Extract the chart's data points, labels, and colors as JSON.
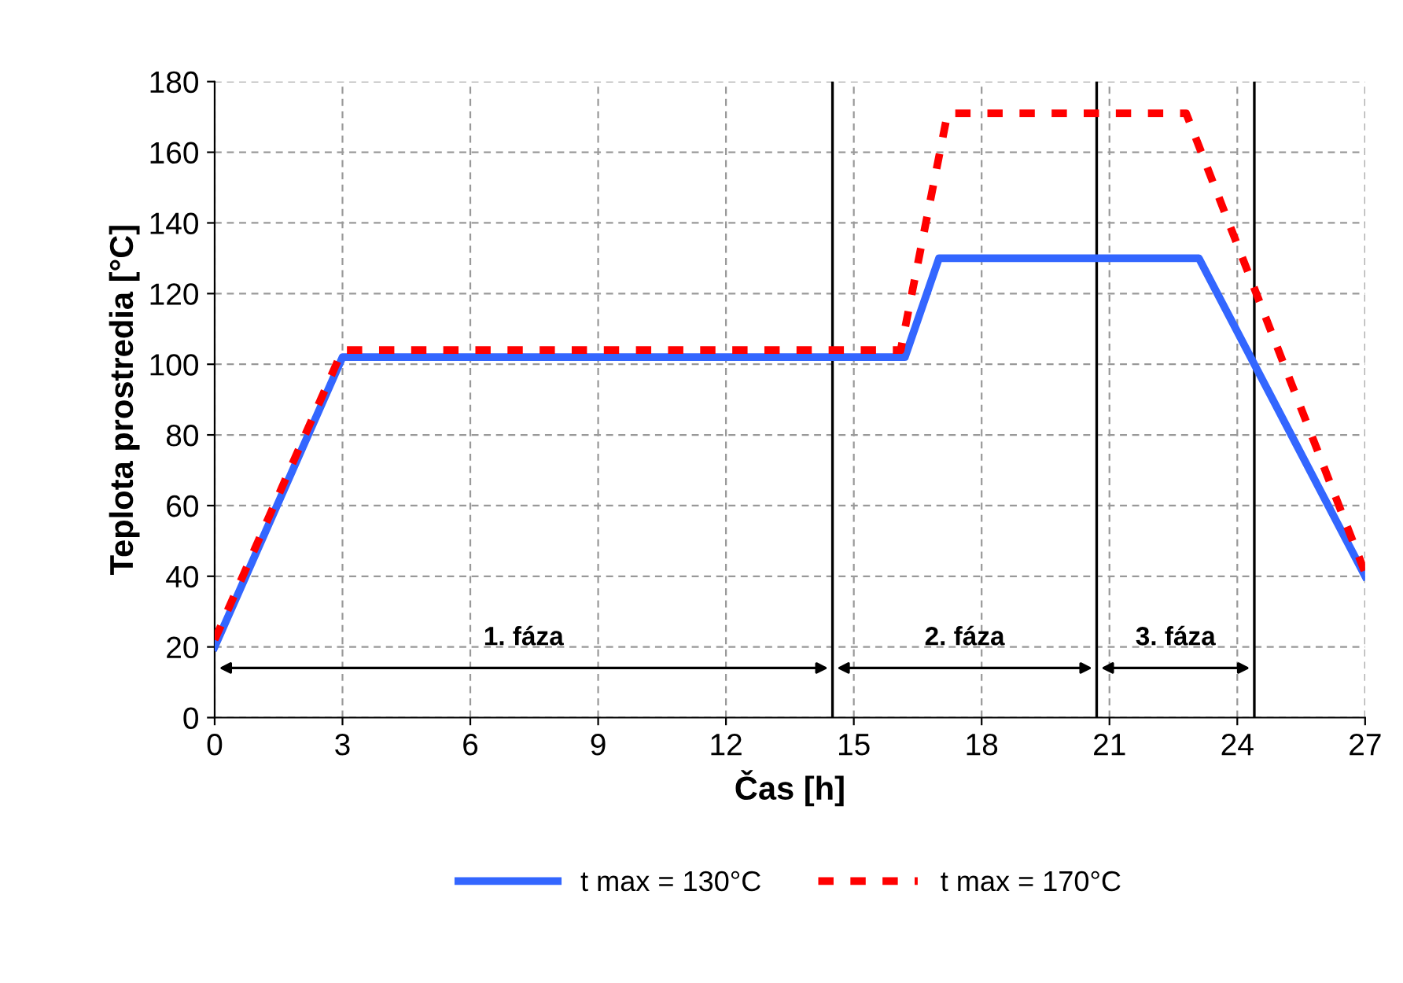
{
  "chart_data": {
    "type": "line",
    "xlabel": "Čas [h]",
    "ylabel": "Teplota prostredia [°C]",
    "xlim": [
      0,
      27
    ],
    "xticks": [
      0,
      3,
      6,
      9,
      12,
      15,
      18,
      21,
      24,
      27
    ],
    "ylim": [
      0,
      180
    ],
    "yticks": [
      0,
      20,
      40,
      60,
      80,
      100,
      120,
      140,
      160,
      180
    ],
    "grid": true,
    "legend": "bottom",
    "marker": "none",
    "series": [
      {
        "name": "t max = 130°C",
        "color": "#3366ff",
        "line_style": "solid",
        "x": [
          0,
          3,
          16.2,
          17,
          23.1,
          27
        ],
        "values": [
          20,
          102,
          102,
          130,
          130,
          40
        ]
      },
      {
        "name": "t max = 170°C",
        "color": "#ff0000",
        "line_style": "dashed",
        "x": [
          0,
          3,
          16.1,
          17.2,
          22.8,
          27
        ],
        "values": [
          22,
          104,
          104,
          171,
          171,
          41
        ]
      }
    ],
    "ref_lines": [
      {
        "axis": "x",
        "value": 14.5,
        "color": "#000000"
      },
      {
        "axis": "x",
        "value": 20.7,
        "color": "#000000"
      },
      {
        "axis": "x",
        "value": 24.4,
        "color": "#000000"
      }
    ],
    "annotations": [
      "1. fáza",
      "2. fáza",
      "3. fáza"
    ]
  }
}
